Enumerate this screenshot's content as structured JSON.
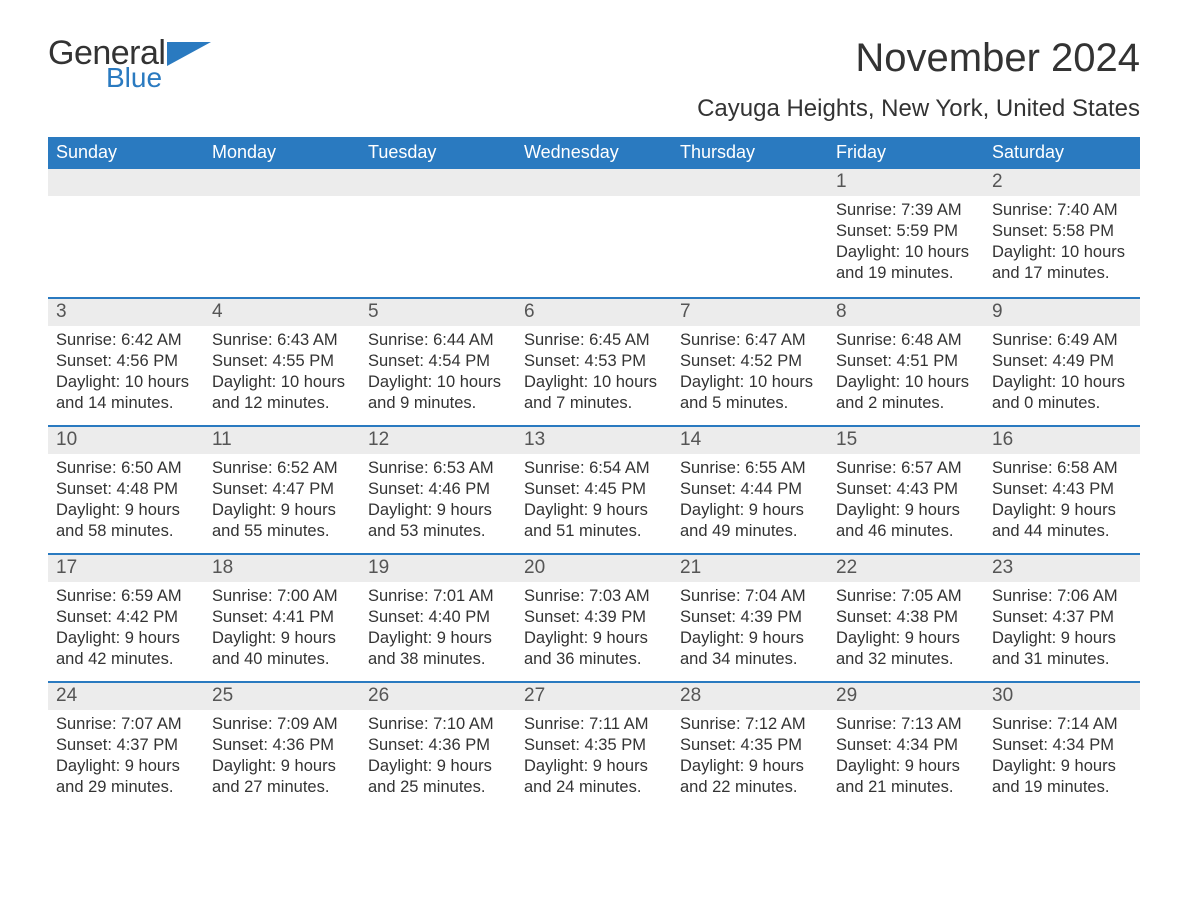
{
  "brand": {
    "word1": "General",
    "word2": "Blue",
    "accent_color": "#2a7ac0"
  },
  "title": "November 2024",
  "location": "Cayuga Heights, New York, United States",
  "colors": {
    "header_bg": "#2a7ac0",
    "header_text": "#ffffff",
    "daynum_bg": "#ececec",
    "body_text": "#333333",
    "page_bg": "#ffffff",
    "row_border": "#2a7ac0"
  },
  "typography": {
    "title_fontsize": 40,
    "location_fontsize": 24,
    "weekday_fontsize": 18,
    "daynum_fontsize": 19,
    "body_fontsize": 16.5
  },
  "weekdays": [
    "Sunday",
    "Monday",
    "Tuesday",
    "Wednesday",
    "Thursday",
    "Friday",
    "Saturday"
  ],
  "layout": {
    "columns": 7,
    "rows": 5,
    "leading_blanks": 5
  },
  "days": [
    {
      "n": 1,
      "sunrise": "7:39 AM",
      "sunset": "5:59 PM",
      "daylight": "10 hours and 19 minutes."
    },
    {
      "n": 2,
      "sunrise": "7:40 AM",
      "sunset": "5:58 PM",
      "daylight": "10 hours and 17 minutes."
    },
    {
      "n": 3,
      "sunrise": "6:42 AM",
      "sunset": "4:56 PM",
      "daylight": "10 hours and 14 minutes."
    },
    {
      "n": 4,
      "sunrise": "6:43 AM",
      "sunset": "4:55 PM",
      "daylight": "10 hours and 12 minutes."
    },
    {
      "n": 5,
      "sunrise": "6:44 AM",
      "sunset": "4:54 PM",
      "daylight": "10 hours and 9 minutes."
    },
    {
      "n": 6,
      "sunrise": "6:45 AM",
      "sunset": "4:53 PM",
      "daylight": "10 hours and 7 minutes."
    },
    {
      "n": 7,
      "sunrise": "6:47 AM",
      "sunset": "4:52 PM",
      "daylight": "10 hours and 5 minutes."
    },
    {
      "n": 8,
      "sunrise": "6:48 AM",
      "sunset": "4:51 PM",
      "daylight": "10 hours and 2 minutes."
    },
    {
      "n": 9,
      "sunrise": "6:49 AM",
      "sunset": "4:49 PM",
      "daylight": "10 hours and 0 minutes."
    },
    {
      "n": 10,
      "sunrise": "6:50 AM",
      "sunset": "4:48 PM",
      "daylight": "9 hours and 58 minutes."
    },
    {
      "n": 11,
      "sunrise": "6:52 AM",
      "sunset": "4:47 PM",
      "daylight": "9 hours and 55 minutes."
    },
    {
      "n": 12,
      "sunrise": "6:53 AM",
      "sunset": "4:46 PM",
      "daylight": "9 hours and 53 minutes."
    },
    {
      "n": 13,
      "sunrise": "6:54 AM",
      "sunset": "4:45 PM",
      "daylight": "9 hours and 51 minutes."
    },
    {
      "n": 14,
      "sunrise": "6:55 AM",
      "sunset": "4:44 PM",
      "daylight": "9 hours and 49 minutes."
    },
    {
      "n": 15,
      "sunrise": "6:57 AM",
      "sunset": "4:43 PM",
      "daylight": "9 hours and 46 minutes."
    },
    {
      "n": 16,
      "sunrise": "6:58 AM",
      "sunset": "4:43 PM",
      "daylight": "9 hours and 44 minutes."
    },
    {
      "n": 17,
      "sunrise": "6:59 AM",
      "sunset": "4:42 PM",
      "daylight": "9 hours and 42 minutes."
    },
    {
      "n": 18,
      "sunrise": "7:00 AM",
      "sunset": "4:41 PM",
      "daylight": "9 hours and 40 minutes."
    },
    {
      "n": 19,
      "sunrise": "7:01 AM",
      "sunset": "4:40 PM",
      "daylight": "9 hours and 38 minutes."
    },
    {
      "n": 20,
      "sunrise": "7:03 AM",
      "sunset": "4:39 PM",
      "daylight": "9 hours and 36 minutes."
    },
    {
      "n": 21,
      "sunrise": "7:04 AM",
      "sunset": "4:39 PM",
      "daylight": "9 hours and 34 minutes."
    },
    {
      "n": 22,
      "sunrise": "7:05 AM",
      "sunset": "4:38 PM",
      "daylight": "9 hours and 32 minutes."
    },
    {
      "n": 23,
      "sunrise": "7:06 AM",
      "sunset": "4:37 PM",
      "daylight": "9 hours and 31 minutes."
    },
    {
      "n": 24,
      "sunrise": "7:07 AM",
      "sunset": "4:37 PM",
      "daylight": "9 hours and 29 minutes."
    },
    {
      "n": 25,
      "sunrise": "7:09 AM",
      "sunset": "4:36 PM",
      "daylight": "9 hours and 27 minutes."
    },
    {
      "n": 26,
      "sunrise": "7:10 AM",
      "sunset": "4:36 PM",
      "daylight": "9 hours and 25 minutes."
    },
    {
      "n": 27,
      "sunrise": "7:11 AM",
      "sunset": "4:35 PM",
      "daylight": "9 hours and 24 minutes."
    },
    {
      "n": 28,
      "sunrise": "7:12 AM",
      "sunset": "4:35 PM",
      "daylight": "9 hours and 22 minutes."
    },
    {
      "n": 29,
      "sunrise": "7:13 AM",
      "sunset": "4:34 PM",
      "daylight": "9 hours and 21 minutes."
    },
    {
      "n": 30,
      "sunrise": "7:14 AM",
      "sunset": "4:34 PM",
      "daylight": "9 hours and 19 minutes."
    }
  ],
  "labels": {
    "sunrise": "Sunrise: ",
    "sunset": "Sunset: ",
    "daylight": "Daylight: "
  }
}
